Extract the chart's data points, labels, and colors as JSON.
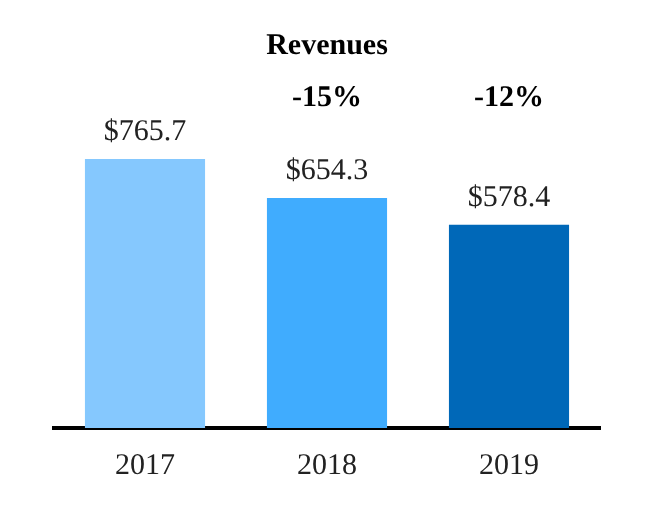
{
  "chart_data": {
    "type": "bar",
    "title": "Revenues",
    "categories": [
      "2017",
      "2018",
      "2019"
    ],
    "values": [
      765.7,
      654.3,
      578.4
    ],
    "colors": [
      "#85c8fe",
      "#40acfe",
      "#0068b8"
    ],
    "value_labels": [
      "$765.7",
      "$654.3",
      "$578.4"
    ],
    "annotations": [
      "-15%",
      "-12%"
    ],
    "grid": false,
    "legend": false
  }
}
